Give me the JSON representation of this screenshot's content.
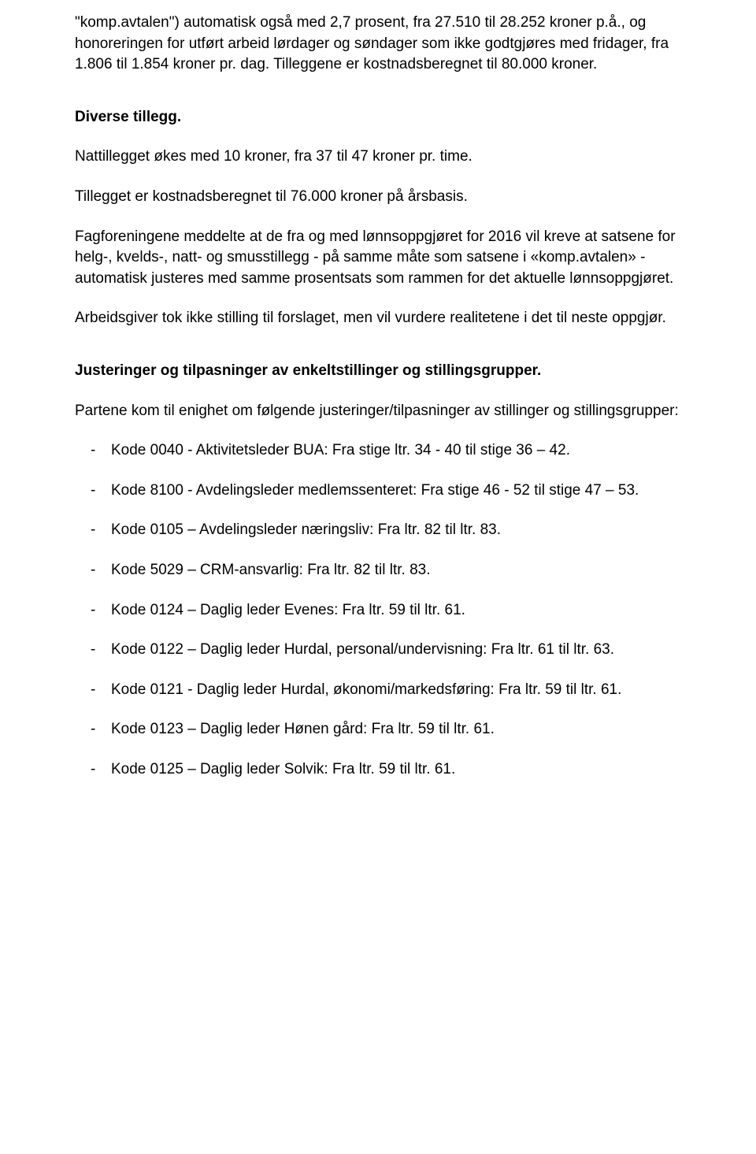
{
  "paragraphs": {
    "p1": "\"komp.avtalen\") automatisk også med 2,7 prosent, fra 27.510 til 28.252 kroner p.å., og honoreringen for utført arbeid lørdager og søndager som ikke godtgjøres med fridager, fra 1.806 til 1.854 kroner pr. dag. Tilleggene er kostnadsberegnet til 80.000 kroner.",
    "h1": "Diverse tillegg.",
    "p2": "Nattillegget økes med 10 kroner, fra 37 til 47 kroner pr. time.",
    "p3": "Tillegget er kostnadsberegnet til 76.000 kroner på årsbasis.",
    "p4": "Fagforeningene meddelte at de fra og med lønnsoppgjøret for 2016 vil kreve at satsene for helg-, kvelds-, natt- og smusstillegg - på samme måte som satsene i «komp.avtalen» - automatisk justeres med samme prosentsats som rammen for det aktuelle lønnsoppgjøret.",
    "p5": "Arbeidsgiver tok ikke stilling til forslaget, men vil vurdere realitetene i det til neste oppgjør.",
    "h2": "Justeringer og tilpasninger av enkeltstillinger og stillingsgrupper.",
    "p6": "Partene kom til enighet om følgende justeringer/tilpasninger av stillinger og stillingsgrupper:"
  },
  "items": [
    "Kode 0040 - Aktivitetsleder BUA: Fra stige ltr. 34 - 40 til stige 36 – 42.",
    "Kode 8100 - Avdelingsleder medlemssenteret: Fra stige 46 - 52 til stige 47 – 53.",
    "Kode 0105 – Avdelingsleder næringsliv: Fra ltr. 82 til ltr. 83.",
    "Kode 5029 – CRM-ansvarlig: Fra ltr. 82 til ltr. 83.",
    "Kode 0124 – Daglig leder Evenes: Fra ltr. 59 til ltr. 61.",
    "Kode 0122 – Daglig leder Hurdal, personal/undervisning: Fra ltr. 61 til ltr. 63.",
    "Kode 0121 - Daglig leder Hurdal, økonomi/markedsføring: Fra ltr. 59 til ltr. 61.",
    "Kode 0123 – Daglig leder Hønen gård: Fra ltr. 59 til ltr. 61.",
    "Kode 0125 – Daglig leder Solvik: Fra ltr. 59 til ltr. 61."
  ]
}
